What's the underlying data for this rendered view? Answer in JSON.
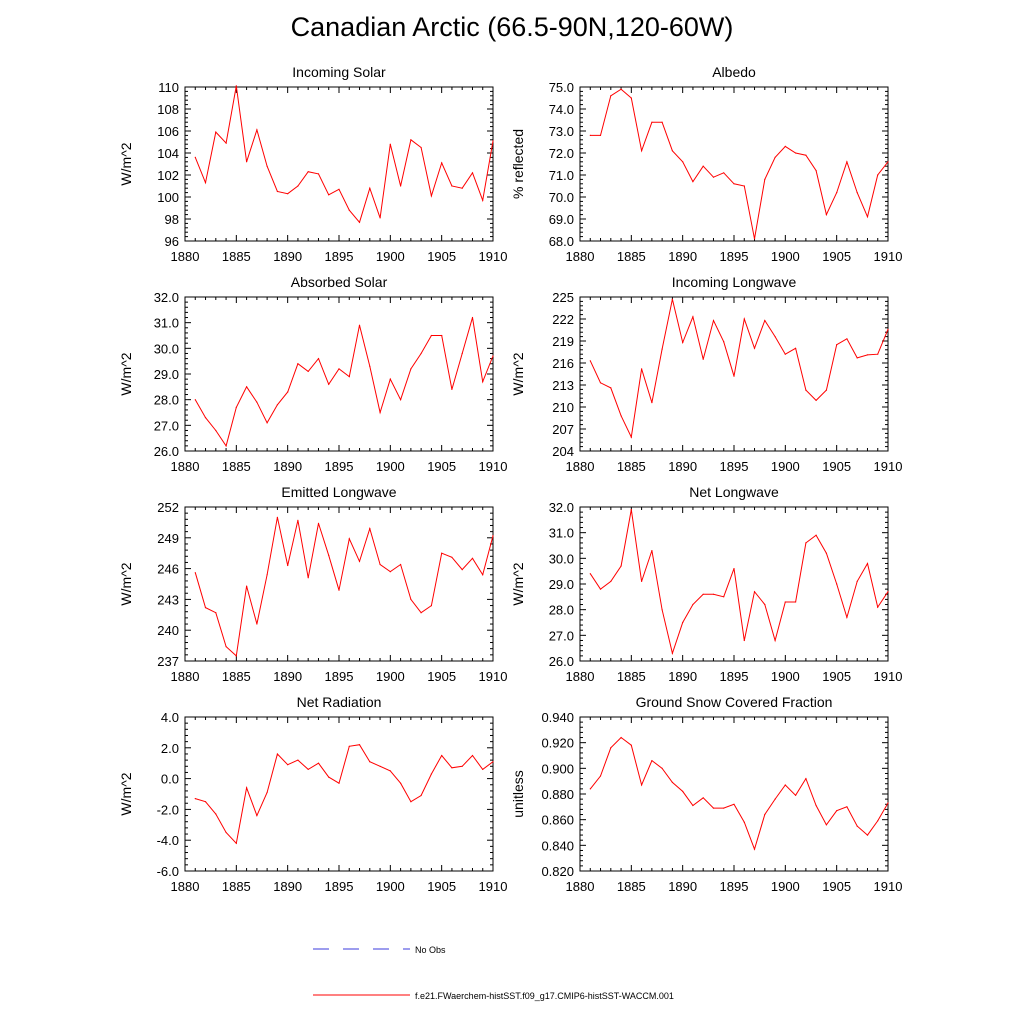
{
  "title": "Canadian Arctic (66.5-90N,120-60W)",
  "colors": {
    "model": "#ff0000",
    "obs": "#3b3bdd",
    "axis": "#000000"
  },
  "legend": {
    "obs_label": "No Obs",
    "model_label": "f.e21.FWaerchem-histSST.f09_g17.CMIP6-histSST-WACCM.001"
  },
  "chart_data": [
    {
      "type": "line",
      "title": "Incoming Solar",
      "xlabel": "",
      "ylabel": "W/m^2",
      "xlim": [
        1880,
        1910
      ],
      "ylim": [
        96,
        110
      ],
      "xticks": [
        "1880",
        "1885",
        "1890",
        "1895",
        "1900",
        "1905",
        "1910"
      ],
      "yticks": [
        "96",
        "98",
        "100",
        "102",
        "104",
        "106",
        "108",
        "110"
      ],
      "x": [
        1881,
        1882,
        1883,
        1884,
        1885,
        1886,
        1887,
        1888,
        1889,
        1890,
        1891,
        1892,
        1893,
        1894,
        1895,
        1896,
        1897,
        1898,
        1899,
        1900,
        1901,
        1902,
        1903,
        1904,
        1905,
        1906,
        1907,
        1908,
        1909,
        1910
      ],
      "values": [
        103.6,
        101.3,
        105.9,
        104.9,
        110.1,
        103.2,
        106.1,
        102.8,
        100.5,
        100.3,
        101.0,
        102.3,
        102.1,
        100.2,
        100.7,
        98.8,
        97.7,
        100.8,
        98.1,
        104.8,
        101.0,
        105.2,
        104.5,
        100.1,
        103.1,
        101.0,
        100.8,
        102.2,
        99.7,
        105.1
      ]
    },
    {
      "type": "line",
      "title": "Albedo",
      "xlabel": "",
      "ylabel": "% reflected",
      "xlim": [
        1880,
        1910
      ],
      "ylim": [
        68.0,
        75.0
      ],
      "xticks": [
        "1880",
        "1885",
        "1890",
        "1895",
        "1900",
        "1905",
        "1910"
      ],
      "yticks": [
        "68.0",
        "69.0",
        "70.0",
        "71.0",
        "72.0",
        "73.0",
        "74.0",
        "75.0"
      ],
      "x": [
        1881,
        1882,
        1883,
        1884,
        1885,
        1886,
        1887,
        1888,
        1889,
        1890,
        1891,
        1892,
        1893,
        1894,
        1895,
        1896,
        1897,
        1898,
        1899,
        1900,
        1901,
        1902,
        1903,
        1904,
        1905,
        1906,
        1907,
        1908,
        1909,
        1910
      ],
      "values": [
        72.8,
        72.8,
        74.6,
        74.9,
        74.5,
        72.1,
        73.4,
        73.4,
        72.1,
        71.6,
        70.7,
        71.4,
        70.9,
        71.1,
        70.6,
        70.5,
        68.1,
        70.8,
        71.8,
        72.3,
        72.0,
        71.9,
        71.2,
        69.2,
        70.2,
        71.6,
        70.2,
        69.1,
        71.0,
        71.6
      ]
    },
    {
      "type": "line",
      "title": "Absorbed Solar",
      "xlabel": "",
      "ylabel": "W/m^2",
      "xlim": [
        1880,
        1910
      ],
      "ylim": [
        26.0,
        32.0
      ],
      "xticks": [
        "1880",
        "1885",
        "1890",
        "1895",
        "1900",
        "1905",
        "1910"
      ],
      "yticks": [
        "26.0",
        "27.0",
        "28.0",
        "29.0",
        "30.0",
        "31.0",
        "32.0"
      ],
      "x": [
        1881,
        1882,
        1883,
        1884,
        1885,
        1886,
        1887,
        1888,
        1889,
        1890,
        1891,
        1892,
        1893,
        1894,
        1895,
        1896,
        1897,
        1898,
        1899,
        1900,
        1901,
        1902,
        1903,
        1904,
        1905,
        1906,
        1907,
        1908,
        1909,
        1910
      ],
      "values": [
        28.0,
        27.3,
        26.8,
        26.2,
        27.7,
        28.5,
        27.9,
        27.1,
        27.8,
        28.3,
        29.4,
        29.1,
        29.6,
        28.6,
        29.2,
        28.9,
        30.9,
        29.3,
        27.5,
        28.8,
        28.0,
        29.2,
        29.8,
        30.5,
        30.5,
        28.4,
        29.8,
        31.2,
        28.7,
        29.7
      ]
    },
    {
      "type": "line",
      "title": "Incoming Longwave",
      "xlabel": "",
      "ylabel": "W/m^2",
      "xlim": [
        1880,
        1910
      ],
      "ylim": [
        204,
        225
      ],
      "xticks": [
        "1880",
        "1885",
        "1890",
        "1895",
        "1900",
        "1905",
        "1910"
      ],
      "yticks": [
        "204",
        "207",
        "210",
        "213",
        "216",
        "219",
        "222",
        "225"
      ],
      "x": [
        1881,
        1882,
        1883,
        1884,
        1885,
        1886,
        1887,
        1888,
        1889,
        1890,
        1891,
        1892,
        1893,
        1894,
        1895,
        1896,
        1897,
        1898,
        1899,
        1900,
        1901,
        1902,
        1903,
        1904,
        1905,
        1906,
        1907,
        1908,
        1909,
        1910
      ],
      "values": [
        216.3,
        213.3,
        212.6,
        208.8,
        205.9,
        215.2,
        210.6,
        217.9,
        224.7,
        218.8,
        222.3,
        216.5,
        221.8,
        218.9,
        214.2,
        222.0,
        218.0,
        221.8,
        219.6,
        217.2,
        218.0,
        212.3,
        210.9,
        212.3,
        218.5,
        219.3,
        216.7,
        217.1,
        217.2,
        220.6
      ]
    },
    {
      "type": "line",
      "title": "Emitted Longwave",
      "xlabel": "",
      "ylabel": "W/m^2",
      "xlim": [
        1880,
        1910
      ],
      "ylim": [
        237,
        252
      ],
      "xticks": [
        "1880",
        "1885",
        "1890",
        "1895",
        "1900",
        "1905",
        "1910"
      ],
      "yticks": [
        "237",
        "240",
        "243",
        "246",
        "249",
        "252"
      ],
      "x": [
        1881,
        1882,
        1883,
        1884,
        1885,
        1886,
        1887,
        1888,
        1889,
        1890,
        1891,
        1892,
        1893,
        1894,
        1895,
        1896,
        1897,
        1898,
        1899,
        1900,
        1901,
        1902,
        1903,
        1904,
        1905,
        1906,
        1907,
        1908,
        1909,
        1910
      ],
      "values": [
        245.6,
        242.2,
        241.7,
        238.4,
        237.5,
        244.3,
        240.6,
        245.4,
        251.0,
        246.3,
        250.7,
        245.1,
        250.4,
        247.3,
        243.9,
        248.9,
        246.7,
        249.9,
        246.4,
        245.7,
        246.4,
        243.0,
        241.7,
        242.4,
        247.5,
        247.1,
        245.9,
        247.0,
        245.4,
        249.2
      ]
    },
    {
      "type": "line",
      "title": "Net Longwave",
      "xlabel": "",
      "ylabel": "W/m^2",
      "xlim": [
        1880,
        1910
      ],
      "ylim": [
        26.0,
        32.0
      ],
      "xticks": [
        "1880",
        "1885",
        "1890",
        "1895",
        "1900",
        "1905",
        "1910"
      ],
      "yticks": [
        "26.0",
        "27.0",
        "28.0",
        "29.0",
        "30.0",
        "31.0",
        "32.0"
      ],
      "x": [
        1881,
        1882,
        1883,
        1884,
        1885,
        1886,
        1887,
        1888,
        1889,
        1890,
        1891,
        1892,
        1893,
        1894,
        1895,
        1896,
        1897,
        1898,
        1899,
        1900,
        1901,
        1902,
        1903,
        1904,
        1905,
        1906,
        1907,
        1908,
        1909,
        1910
      ],
      "values": [
        29.4,
        28.8,
        29.1,
        29.7,
        31.9,
        29.1,
        30.3,
        28.0,
        26.3,
        27.5,
        28.2,
        28.6,
        28.6,
        28.5,
        29.6,
        26.8,
        28.7,
        28.2,
        26.8,
        28.3,
        28.3,
        30.6,
        30.9,
        30.2,
        29.0,
        27.7,
        29.1,
        29.8,
        28.1,
        28.7
      ]
    },
    {
      "type": "line",
      "title": "Net Radiation",
      "xlabel": "",
      "ylabel": "W/m^2",
      "xlim": [
        1880,
        1910
      ],
      "ylim": [
        -6.0,
        4.0
      ],
      "xticks": [
        "1880",
        "1885",
        "1890",
        "1895",
        "1900",
        "1905",
        "1910"
      ],
      "yticks": [
        "-6.0",
        "-4.0",
        "-2.0",
        "0.0",
        "2.0",
        "4.0"
      ],
      "x": [
        1881,
        1882,
        1883,
        1884,
        1885,
        1886,
        1887,
        1888,
        1889,
        1890,
        1891,
        1892,
        1893,
        1894,
        1895,
        1896,
        1897,
        1898,
        1899,
        1900,
        1901,
        1902,
        1903,
        1904,
        1905,
        1906,
        1907,
        1908,
        1909,
        1910
      ],
      "values": [
        -1.3,
        -1.5,
        -2.3,
        -3.5,
        -4.2,
        -0.6,
        -2.4,
        -0.9,
        1.6,
        0.9,
        1.2,
        0.6,
        1.0,
        0.1,
        -0.3,
        2.1,
        2.2,
        1.1,
        0.8,
        0.5,
        -0.3,
        -1.5,
        -1.1,
        0.3,
        1.5,
        0.7,
        0.8,
        1.5,
        0.6,
        1.1
      ]
    },
    {
      "type": "line",
      "title": "Ground Snow Covered Fraction",
      "xlabel": "",
      "ylabel": "unitless",
      "xlim": [
        1880,
        1910
      ],
      "ylim": [
        0.82,
        0.94
      ],
      "xticks": [
        "1880",
        "1885",
        "1890",
        "1895",
        "1900",
        "1905",
        "1910"
      ],
      "yticks": [
        "0.820",
        "0.840",
        "0.860",
        "0.880",
        "0.900",
        "0.920",
        "0.940"
      ],
      "x": [
        1881,
        1882,
        1883,
        1884,
        1885,
        1886,
        1887,
        1888,
        1889,
        1890,
        1891,
        1892,
        1893,
        1894,
        1895,
        1896,
        1897,
        1898,
        1899,
        1900,
        1901,
        1902,
        1903,
        1904,
        1905,
        1906,
        1907,
        1908,
        1909,
        1910
      ],
      "values": [
        0.884,
        0.894,
        0.916,
        0.924,
        0.918,
        0.887,
        0.906,
        0.9,
        0.889,
        0.882,
        0.871,
        0.877,
        0.869,
        0.869,
        0.872,
        0.858,
        0.837,
        0.864,
        0.876,
        0.887,
        0.879,
        0.892,
        0.871,
        0.856,
        0.867,
        0.87,
        0.855,
        0.848,
        0.859,
        0.873
      ]
    }
  ]
}
